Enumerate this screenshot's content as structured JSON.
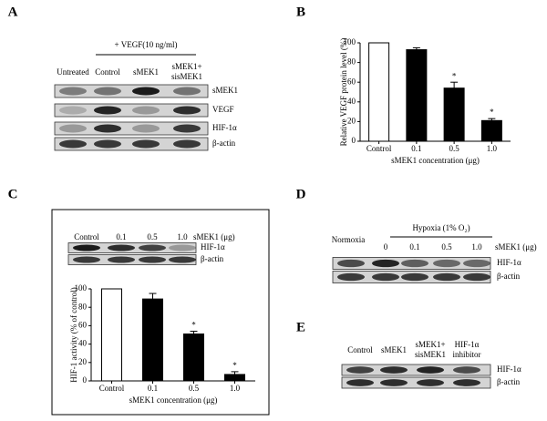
{
  "panels": {
    "a": "A",
    "b": "B",
    "c": "C",
    "d": "D",
    "e": "E"
  },
  "blot_a": {
    "treatment": "+ VEGF(10  ng/ml)",
    "lanes": [
      "Untreated",
      "Control",
      "sMEK1",
      [
        "sMEK1+",
        "sisMEK1"
      ]
    ],
    "rows": [
      "sMEK1",
      "VEGF",
      "HIF-1α",
      "β-actin"
    ]
  },
  "blot_c": {
    "lanes": [
      "Control",
      "0.1",
      "0.5",
      "1.0"
    ],
    "lane_unit": "sMEK1 (μg)",
    "rows": [
      "HIF-1α",
      "β-actin"
    ]
  },
  "blot_d": {
    "control": "Normoxia",
    "treatment": "Hypoxia (1% O₂)",
    "lanes": [
      "0",
      "0.1",
      "0.5",
      "1.0"
    ],
    "lane_unit": "sMEK1  (μg)",
    "rows": [
      "HIF-1α",
      "β-actin"
    ]
  },
  "blot_e": {
    "lanes": [
      "Control",
      "sMEK1",
      [
        "sMEK1+",
        "sisMEK1"
      ],
      [
        "HIF-1α",
        "inhibitor"
      ]
    ],
    "rows": [
      "HIF-1α",
      "β-actin"
    ]
  },
  "chart_data": [
    {
      "type": "bar",
      "y_label": "Relative VEGF protein level (%)",
      "x_label": "sMEK1  concentration (μg)",
      "categories": [
        "Control",
        "0.1",
        "0.5",
        "1.0"
      ],
      "values": [
        100,
        93,
        54,
        21
      ],
      "errors": [
        null,
        2,
        6,
        2
      ],
      "colors": [
        "#ffffff",
        "#000000",
        "#000000",
        "#000000"
      ],
      "markers": [
        null,
        null,
        "*",
        "*"
      ],
      "ylim": [
        0,
        100
      ],
      "yticks": [
        0,
        20,
        40,
        60,
        80,
        100
      ]
    },
    {
      "type": "bar",
      "y_label": "HIF-1 activity (% of control)",
      "x_label": "sMEK1 concentration (μg)",
      "categories": [
        "Control",
        "0.1",
        "0.5",
        "1.0"
      ],
      "values": [
        100,
        89,
        51,
        7
      ],
      "errors": [
        null,
        6,
        3,
        3
      ],
      "colors": [
        "#ffffff",
        "#000000",
        "#000000",
        "#000000"
      ],
      "markers": [
        null,
        null,
        "*",
        "*"
      ],
      "ylim": [
        0,
        100
      ],
      "yticks": [
        0,
        20,
        40,
        60,
        80,
        100
      ]
    }
  ]
}
